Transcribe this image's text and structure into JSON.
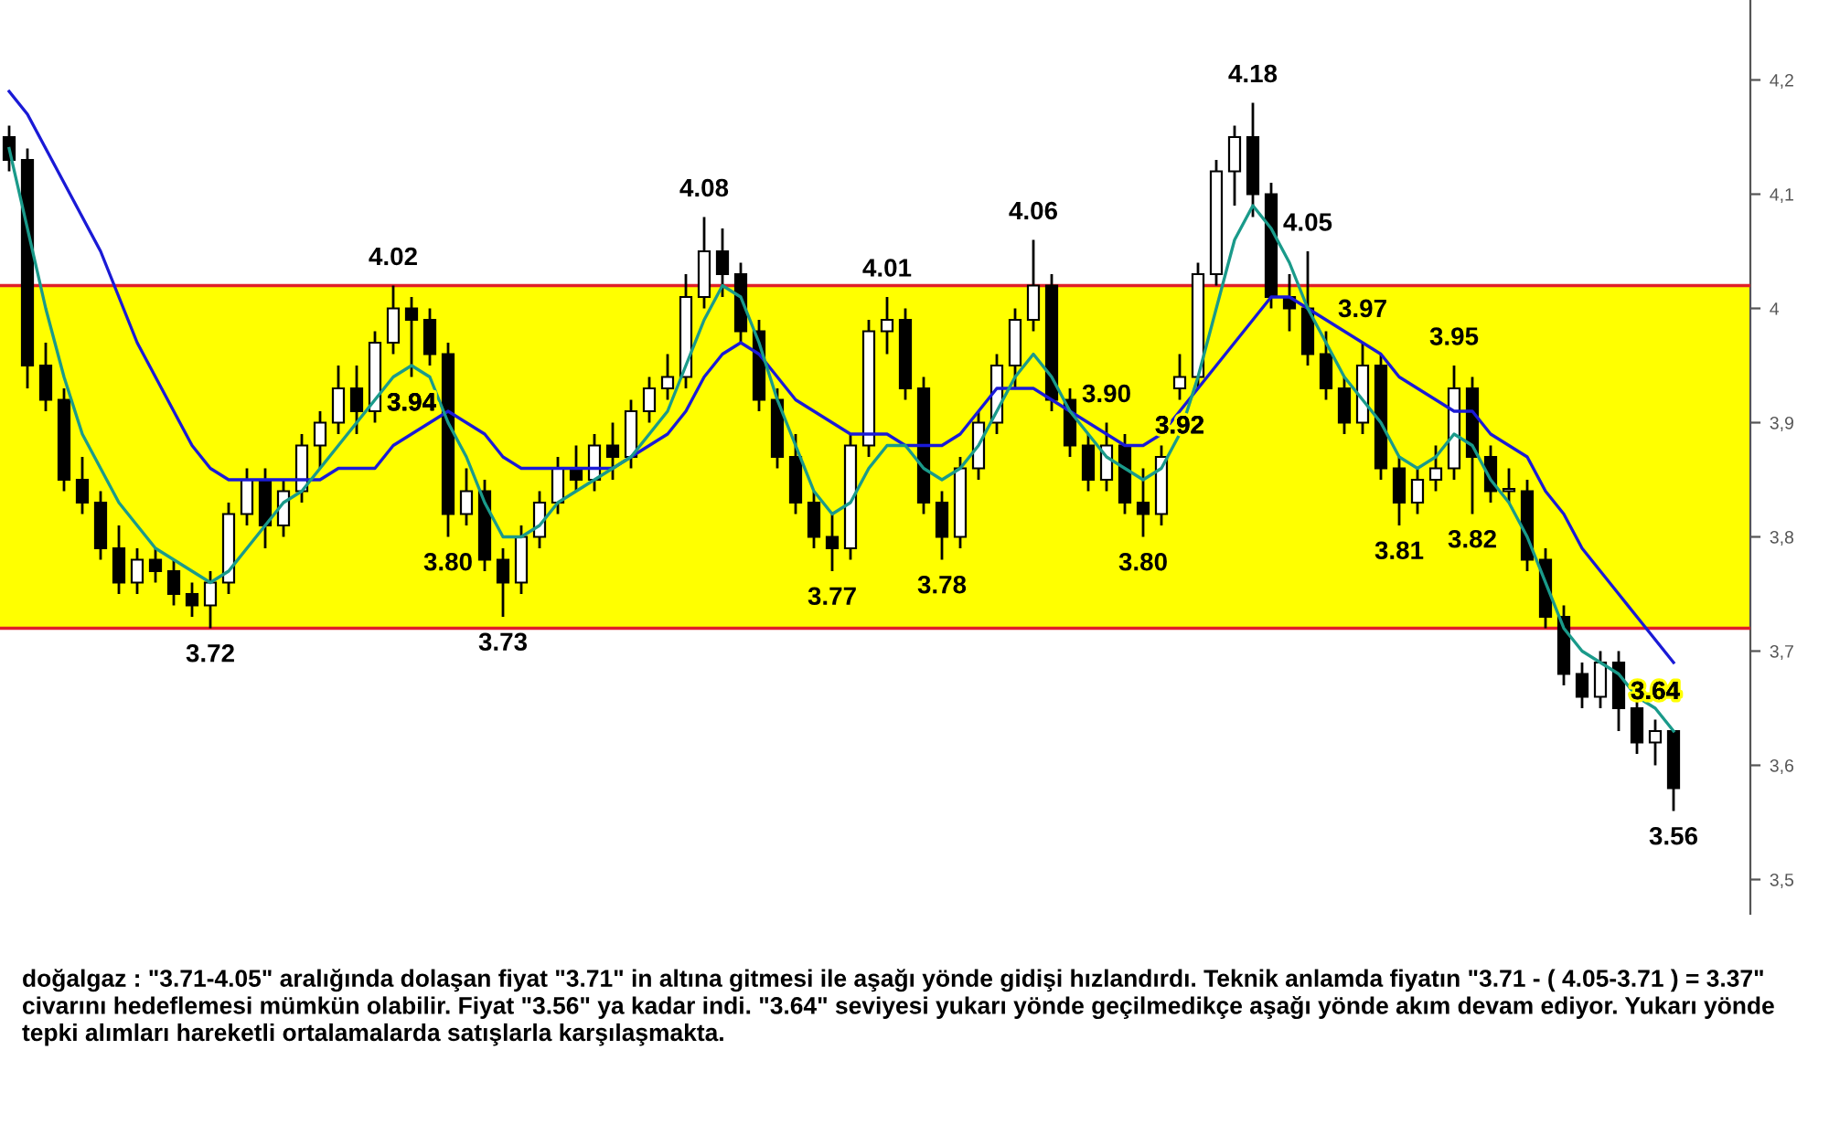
{
  "chart_data": {
    "type": "candlestick",
    "categories": [
      null,
      null,
      null,
      null,
      null,
      null,
      null,
      null,
      null,
      null,
      null,
      null,
      null,
      null,
      null,
      null,
      null,
      null,
      null,
      null,
      null,
      null,
      null,
      null,
      null,
      null,
      null,
      null,
      null,
      null,
      null,
      null,
      null,
      null,
      null,
      null,
      null,
      null,
      null,
      null,
      null,
      null,
      null,
      null,
      null,
      null,
      null,
      null,
      null,
      null,
      null,
      null,
      null,
      null,
      null,
      null,
      null,
      null,
      null,
      null,
      null,
      null,
      null,
      null,
      null,
      null,
      null,
      null,
      null,
      null,
      null,
      null,
      null,
      null,
      null,
      null,
      null,
      null,
      null,
      null,
      null,
      null,
      null,
      null,
      null,
      null,
      null,
      null,
      null,
      null,
      null,
      null
    ],
    "ohlc": [
      [
        4.15,
        4.16,
        4.12,
        4.13
      ],
      [
        4.13,
        4.14,
        3.93,
        3.95
      ],
      [
        3.95,
        3.97,
        3.91,
        3.92
      ],
      [
        3.92,
        3.93,
        3.84,
        3.85
      ],
      [
        3.85,
        3.87,
        3.82,
        3.83
      ],
      [
        3.83,
        3.84,
        3.78,
        3.79
      ],
      [
        3.79,
        3.81,
        3.75,
        3.76
      ],
      [
        3.76,
        3.79,
        3.75,
        3.78
      ],
      [
        3.78,
        3.79,
        3.76,
        3.77
      ],
      [
        3.77,
        3.78,
        3.74,
        3.75
      ],
      [
        3.75,
        3.76,
        3.73,
        3.74
      ],
      [
        3.74,
        3.77,
        3.72,
        3.76
      ],
      [
        3.76,
        3.83,
        3.75,
        3.82
      ],
      [
        3.82,
        3.86,
        3.81,
        3.85
      ],
      [
        3.85,
        3.86,
        3.79,
        3.81
      ],
      [
        3.81,
        3.85,
        3.8,
        3.84
      ],
      [
        3.84,
        3.89,
        3.83,
        3.88
      ],
      [
        3.88,
        3.91,
        3.86,
        3.9
      ],
      [
        3.9,
        3.95,
        3.89,
        3.93
      ],
      [
        3.93,
        3.95,
        3.89,
        3.91
      ],
      [
        3.91,
        3.98,
        3.9,
        3.97
      ],
      [
        3.97,
        4.02,
        3.96,
        4.0
      ],
      [
        4.0,
        4.01,
        3.94,
        3.99
      ],
      [
        3.99,
        4.0,
        3.95,
        3.96
      ],
      [
        3.96,
        3.97,
        3.8,
        3.82
      ],
      [
        3.82,
        3.86,
        3.81,
        3.84
      ],
      [
        3.84,
        3.85,
        3.77,
        3.78
      ],
      [
        3.78,
        3.79,
        3.73,
        3.76
      ],
      [
        3.76,
        3.81,
        3.75,
        3.8
      ],
      [
        3.8,
        3.84,
        3.79,
        3.83
      ],
      [
        3.83,
        3.87,
        3.82,
        3.86
      ],
      [
        3.86,
        3.88,
        3.84,
        3.85
      ],
      [
        3.85,
        3.89,
        3.84,
        3.88
      ],
      [
        3.88,
        3.9,
        3.85,
        3.87
      ],
      [
        3.87,
        3.92,
        3.86,
        3.91
      ],
      [
        3.91,
        3.94,
        3.9,
        3.93
      ],
      [
        3.93,
        3.96,
        3.92,
        3.94
      ],
      [
        3.94,
        4.03,
        3.93,
        4.01
      ],
      [
        4.01,
        4.08,
        4.0,
        4.05
      ],
      [
        4.05,
        4.07,
        4.01,
        4.03
      ],
      [
        4.03,
        4.04,
        3.97,
        3.98
      ],
      [
        3.98,
        3.99,
        3.91,
        3.92
      ],
      [
        3.92,
        3.93,
        3.86,
        3.87
      ],
      [
        3.87,
        3.89,
        3.82,
        3.83
      ],
      [
        3.83,
        3.84,
        3.79,
        3.8
      ],
      [
        3.8,
        3.82,
        3.77,
        3.79
      ],
      [
        3.79,
        3.89,
        3.78,
        3.88
      ],
      [
        3.88,
        3.99,
        3.87,
        3.98
      ],
      [
        3.98,
        4.01,
        3.96,
        3.99
      ],
      [
        3.99,
        4.0,
        3.92,
        3.93
      ],
      [
        3.93,
        3.94,
        3.82,
        3.83
      ],
      [
        3.83,
        3.84,
        3.78,
        3.8
      ],
      [
        3.8,
        3.87,
        3.79,
        3.86
      ],
      [
        3.86,
        3.91,
        3.85,
        3.9
      ],
      [
        3.9,
        3.96,
        3.89,
        3.95
      ],
      [
        3.95,
        4.0,
        3.93,
        3.99
      ],
      [
        3.99,
        4.06,
        3.98,
        4.02
      ],
      [
        4.02,
        4.03,
        3.91,
        3.92
      ],
      [
        3.92,
        3.93,
        3.87,
        3.88
      ],
      [
        3.88,
        3.89,
        3.84,
        3.85
      ],
      [
        3.85,
        3.9,
        3.84,
        3.88
      ],
      [
        3.88,
        3.89,
        3.82,
        3.83
      ],
      [
        3.83,
        3.86,
        3.8,
        3.82
      ],
      [
        3.82,
        3.88,
        3.81,
        3.87
      ],
      [
        3.93,
        3.96,
        3.92,
        3.94
      ],
      [
        3.94,
        4.04,
        3.93,
        4.03
      ],
      [
        4.03,
        4.13,
        4.02,
        4.12
      ],
      [
        4.12,
        4.16,
        4.09,
        4.15
      ],
      [
        4.15,
        4.18,
        4.08,
        4.1
      ],
      [
        4.1,
        4.11,
        4.0,
        4.01
      ],
      [
        4.01,
        4.03,
        3.98,
        4.0
      ],
      [
        4.0,
        4.05,
        3.95,
        3.96
      ],
      [
        3.96,
        3.98,
        3.92,
        3.93
      ],
      [
        3.93,
        3.94,
        3.89,
        3.9
      ],
      [
        3.9,
        3.97,
        3.89,
        3.95
      ],
      [
        3.95,
        3.96,
        3.85,
        3.86
      ],
      [
        3.86,
        3.87,
        3.81,
        3.83
      ],
      [
        3.83,
        3.86,
        3.82,
        3.85
      ],
      [
        3.85,
        3.88,
        3.84,
        3.86
      ],
      [
        3.86,
        3.95,
        3.85,
        3.93
      ],
      [
        3.93,
        3.94,
        3.82,
        3.87
      ],
      [
        3.87,
        3.88,
        3.83,
        3.84
      ],
      [
        3.84,
        3.86,
        3.83,
        3.84
      ],
      [
        3.84,
        3.85,
        3.77,
        3.78
      ],
      [
        3.78,
        3.79,
        3.72,
        3.73
      ],
      [
        3.73,
        3.74,
        3.67,
        3.68
      ],
      [
        3.68,
        3.69,
        3.65,
        3.66
      ],
      [
        3.66,
        3.7,
        3.65,
        3.69
      ],
      [
        3.69,
        3.7,
        3.63,
        3.65
      ],
      [
        3.65,
        3.66,
        3.61,
        3.62
      ],
      [
        3.62,
        3.64,
        3.6,
        3.63
      ],
      [
        3.63,
        3.63,
        3.56,
        3.58
      ]
    ],
    "series": [
      {
        "type": "line",
        "color": "#1a1ad6",
        "values": [
          4.19,
          4.17,
          4.14,
          4.11,
          4.08,
          4.05,
          4.01,
          3.97,
          3.94,
          3.91,
          3.88,
          3.86,
          3.85,
          3.85,
          3.85,
          3.85,
          3.85,
          3.85,
          3.86,
          3.86,
          3.86,
          3.88,
          3.89,
          3.9,
          3.91,
          3.9,
          3.89,
          3.87,
          3.86,
          3.86,
          3.86,
          3.86,
          3.86,
          3.86,
          3.87,
          3.88,
          3.89,
          3.91,
          3.94,
          3.96,
          3.97,
          3.96,
          3.94,
          3.92,
          3.91,
          3.9,
          3.89,
          3.89,
          3.89,
          3.88,
          3.88,
          3.88,
          3.89,
          3.91,
          3.93,
          3.93,
          3.93,
          3.92,
          3.91,
          3.9,
          3.89,
          3.88,
          3.88,
          3.89,
          3.91,
          3.93,
          3.95,
          3.97,
          3.99,
          4.01,
          4.01,
          4.0,
          3.99,
          3.98,
          3.97,
          3.96,
          3.94,
          3.93,
          3.92,
          3.91,
          3.91,
          3.89,
          3.88,
          3.87,
          3.84,
          3.82,
          3.79,
          3.77,
          3.75,
          3.73,
          3.71,
          3.69
        ]
      },
      {
        "type": "line",
        "color": "#1a9a8a",
        "values": [
          4.14,
          4.07,
          4.0,
          3.94,
          3.89,
          3.86,
          3.83,
          3.81,
          3.79,
          3.78,
          3.77,
          3.76,
          3.77,
          3.79,
          3.81,
          3.83,
          3.84,
          3.86,
          3.88,
          3.9,
          3.92,
          3.94,
          3.95,
          3.94,
          3.9,
          3.87,
          3.83,
          3.8,
          3.8,
          3.81,
          3.83,
          3.84,
          3.85,
          3.86,
          3.87,
          3.89,
          3.91,
          3.95,
          3.99,
          4.02,
          4.01,
          3.97,
          3.92,
          3.88,
          3.84,
          3.82,
          3.83,
          3.86,
          3.88,
          3.88,
          3.86,
          3.85,
          3.86,
          3.88,
          3.91,
          3.94,
          3.96,
          3.94,
          3.91,
          3.89,
          3.87,
          3.86,
          3.85,
          3.86,
          3.89,
          3.94,
          4.0,
          4.06,
          4.09,
          4.07,
          4.04,
          4.0,
          3.97,
          3.94,
          3.92,
          3.9,
          3.87,
          3.86,
          3.87,
          3.89,
          3.88,
          3.85,
          3.83,
          3.8,
          3.76,
          3.72,
          3.7,
          3.69,
          3.68,
          3.66,
          3.65,
          3.63
        ]
      }
    ],
    "ylim": [
      3.47,
      4.27
    ],
    "yticks": [
      {
        "value": 3.5,
        "label": "3,5"
      },
      {
        "value": 3.6,
        "label": "3,6"
      },
      {
        "value": 3.7,
        "label": "3,7"
      },
      {
        "value": 3.8,
        "label": "3,8"
      },
      {
        "value": 3.9,
        "label": "3,9"
      },
      {
        "value": 4.0,
        "label": "4"
      },
      {
        "value": 4.1,
        "label": "4,1"
      },
      {
        "value": 4.2,
        "label": "4,2"
      }
    ],
    "ref_lines": [
      {
        "axis": "y",
        "value": 4.02,
        "color": "#e0202a"
      },
      {
        "axis": "y",
        "value": 3.72,
        "color": "#e0202a"
      }
    ],
    "bands": [
      {
        "axis": "y",
        "from": 3.72,
        "to": 4.02,
        "color": "#ffff00"
      }
    ],
    "grid": false,
    "legend": false,
    "tick_labels": "y",
    "annotations": [
      {
        "text": "3.72",
        "y": 3.72
      },
      {
        "text": "4.02",
        "y": 4.02
      },
      {
        "text": "3.94",
        "y": 3.94
      },
      {
        "text": "3.80",
        "y": 3.8
      },
      {
        "text": "3.73",
        "y": 3.73
      },
      {
        "text": "4.08",
        "y": 4.08
      },
      {
        "text": "3.77",
        "y": 3.77
      },
      {
        "text": "4.01",
        "y": 4.01
      },
      {
        "text": "3.78",
        "y": 3.78
      },
      {
        "text": "4.06",
        "y": 4.06
      },
      {
        "text": "3.90",
        "y": 3.9
      },
      {
        "text": "3.80",
        "y": 3.8
      },
      {
        "text": "3.92",
        "y": 3.92
      },
      {
        "text": "4.18",
        "y": 4.18
      },
      {
        "text": "4.05",
        "y": 4.05
      },
      {
        "text": "3.97",
        "y": 3.97
      },
      {
        "text": "3.81",
        "y": 3.81
      },
      {
        "text": "3.95",
        "y": 3.95
      },
      {
        "text": "3.82",
        "y": 3.82
      },
      {
        "text": "3.64",
        "y": 3.64
      },
      {
        "text": "3.56",
        "y": 3.56
      },
      "doğalgaz : \"3.71-4.05\" aralığında dolaşan fiyat \"3.71\" in altına gitmesi ile aşağı yönde gidişi hızlandırdı. Teknik anlamda fiyatın \"3.71 - ( 4.05-3.71 ) = 3.37\" civarını hedeflemesi mümkün olabilir. Fiyat \"3.56\" ya kadar indi. \"3.64\" seviyesi yukarı yönde geçilmedikçe aşağı yönde akım devam ediyor. Yukarı yönde tepki alımları hareketli ortalamalarda satışlarla karşılaşmakta."
    ]
  }
}
